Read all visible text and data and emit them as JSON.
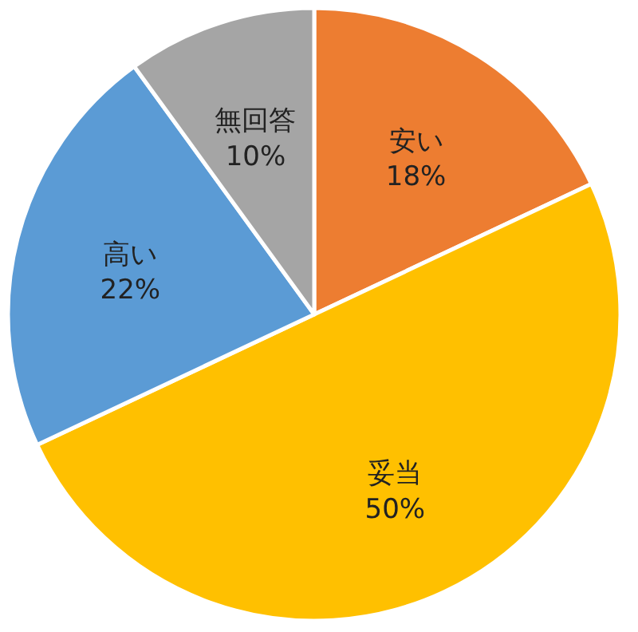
{
  "chart_data": {
    "type": "pie",
    "categories": [
      "安い",
      "妥当",
      "高い",
      "無回答"
    ],
    "values": [
      18,
      50,
      22,
      10
    ],
    "colors": [
      "#ed7d31",
      "#ffc000",
      "#5b9bd5",
      "#a5a5a5"
    ],
    "value_labels": [
      "18%",
      "50%",
      "22%",
      "10%"
    ]
  }
}
